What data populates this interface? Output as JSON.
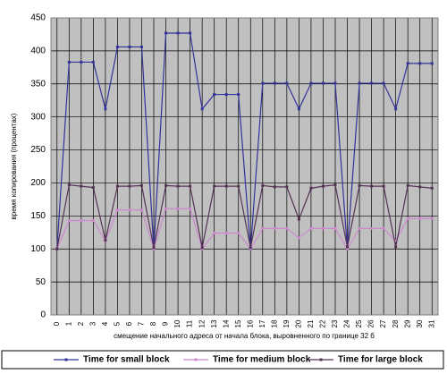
{
  "chart_data": {
    "type": "line",
    "x_label": "смещение начального адреса от начала блока, выровненного по границе 32 б",
    "y_label": "время копирования (процентах)",
    "categories": [
      "0",
      "1",
      "2",
      "3",
      "4",
      "5",
      "6",
      "7",
      "8",
      "9",
      "10",
      "11",
      "12",
      "13",
      "14",
      "15",
      "16",
      "17",
      "18",
      "19",
      "20",
      "21",
      "22",
      "23",
      "24",
      "25",
      "26",
      "27",
      "28",
      "29",
      "30",
      "31"
    ],
    "series": [
      {
        "name": "Time for small block",
        "color": "#33339a",
        "values": [
          100,
          383,
          383,
          383,
          312,
          406,
          406,
          406,
          100,
          427,
          427,
          427,
          312,
          334,
          334,
          334,
          100,
          351,
          351,
          351,
          312,
          351,
          351,
          351,
          100,
          351,
          351,
          351,
          312,
          381,
          381,
          381
        ]
      },
      {
        "name": "Time for medium block",
        "color": "#cc88cc",
        "values": [
          100,
          143,
          143,
          143,
          112,
          159,
          159,
          159,
          100,
          161,
          161,
          161,
          100,
          124,
          124,
          124,
          100,
          131,
          131,
          131,
          117,
          131,
          131,
          131,
          100,
          131,
          131,
          131,
          112,
          146,
          146,
          146
        ]
      },
      {
        "name": "Time for large block",
        "color": "#553355",
        "values": [
          100,
          197,
          195,
          193,
          113,
          195,
          195,
          196,
          102,
          196,
          195,
          195,
          102,
          195,
          195,
          195,
          102,
          196,
          194,
          194,
          145,
          192,
          195,
          197,
          103,
          196,
          195,
          195,
          103,
          196,
          194,
          192
        ]
      }
    ],
    "ylim": [
      0,
      450
    ],
    "yticks": [
      0,
      50,
      100,
      150,
      200,
      250,
      300,
      350,
      400,
      450
    ],
    "grid": true
  }
}
